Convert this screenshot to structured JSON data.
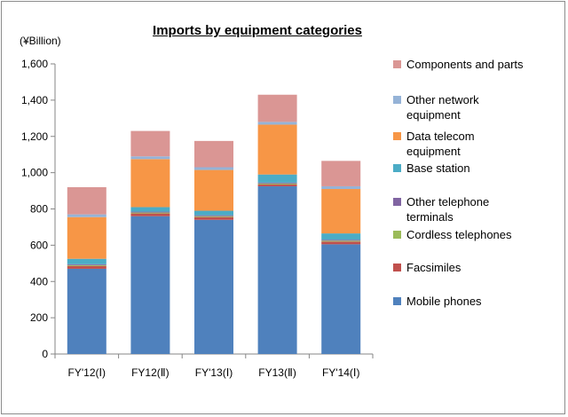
{
  "chart_data": {
    "type": "bar",
    "stacked": true,
    "title": "Imports by equipment categories",
    "unit_label": "(¥Billion)",
    "xlabel": "",
    "ylabel": "",
    "ylim": [
      0,
      1600
    ],
    "yticks": [
      0,
      200,
      400,
      600,
      800,
      1000,
      1200,
      1400,
      1600
    ],
    "ytick_labels": [
      "0",
      "200",
      "400",
      "600",
      "800",
      "1,000",
      "1,200",
      "1,400",
      "1,600"
    ],
    "grid": false,
    "legend_position": "right",
    "categories": [
      "FY'12(Ⅰ)",
      "FY12(Ⅱ)",
      "FY'13(Ⅰ)",
      "FY13(Ⅱ)",
      "FY'14(Ⅰ)"
    ],
    "series": [
      {
        "name": "Mobile phones",
        "color": "#4f81bd",
        "values": [
          470,
          760,
          740,
          925,
          605
        ]
      },
      {
        "name": "Facsimiles",
        "color": "#c0504d",
        "values": [
          15,
          15,
          15,
          10,
          15
        ]
      },
      {
        "name": "Cordless telephones",
        "color": "#9bbb59",
        "values": [
          5,
          5,
          5,
          5,
          5
        ]
      },
      {
        "name": "Other telephone terminals",
        "color": "#8064a2",
        "values": [
          5,
          5,
          5,
          5,
          5
        ]
      },
      {
        "name": "Base station",
        "color": "#4bacc6",
        "values": [
          30,
          25,
          25,
          45,
          35
        ]
      },
      {
        "name": "Data telecom equipment",
        "color": "#f79646",
        "values": [
          230,
          265,
          225,
          275,
          245
        ]
      },
      {
        "name": "Other network equipment",
        "color": "#95b3d7",
        "values": [
          15,
          15,
          15,
          15,
          15
        ]
      },
      {
        "name": "Components and parts",
        "color": "#da9694",
        "values": [
          150,
          140,
          145,
          150,
          140
        ]
      }
    ],
    "legend_lines": [
      [
        "Components and parts"
      ],
      [
        "Other network",
        "equipment"
      ],
      [
        "Data telecom",
        "equipment"
      ],
      [
        "Base station"
      ],
      [
        "Other telephone",
        "terminals"
      ],
      [
        "Cordless telephones"
      ],
      [
        "Facsimiles"
      ],
      [
        "Mobile phones"
      ]
    ]
  }
}
